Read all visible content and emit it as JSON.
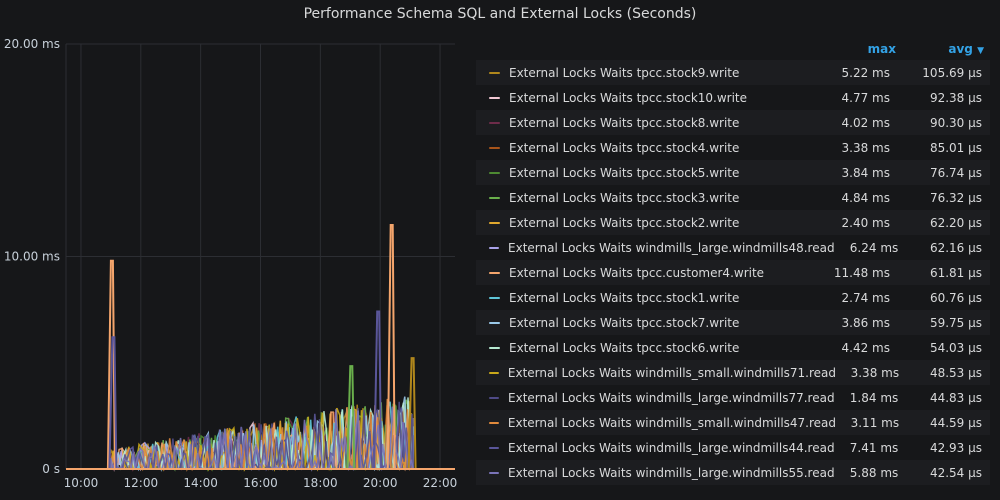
{
  "panel": {
    "title": "Performance Schema SQL and External Locks (Seconds)"
  },
  "legend": {
    "max_header": "max",
    "avg_header": "avg",
    "sort_icon": "chevron-down-icon",
    "items": [
      {
        "name": "External Locks Waits tpcc.stock9.write",
        "max": "5.22 ms",
        "avg": "105.69 µs",
        "color": "#b0871c"
      },
      {
        "name": "External Locks Waits tpcc.stock10.write",
        "max": "4.77 ms",
        "avg": "92.38 µs",
        "color": "#f2c8d3"
      },
      {
        "name": "External Locks Waits tpcc.stock8.write",
        "max": "4.02 ms",
        "avg": "90.30 µs",
        "color": "#6e2c4a"
      },
      {
        "name": "External Locks Waits tpcc.stock4.write",
        "max": "3.38 ms",
        "avg": "85.01 µs",
        "color": "#a8541a"
      },
      {
        "name": "External Locks Waits tpcc.stock5.write",
        "max": "3.84 ms",
        "avg": "76.74 µs",
        "color": "#4d8a32"
      },
      {
        "name": "External Locks Waits tpcc.stock3.write",
        "max": "4.84 ms",
        "avg": "76.32 µs",
        "color": "#6ab04c"
      },
      {
        "name": "External Locks Waits tpcc.stock2.write",
        "max": "2.40 ms",
        "avg": "62.20 µs",
        "color": "#e0a82e"
      },
      {
        "name": "External Locks Waits windmills_large.windmills48.read",
        "max": "6.24 ms",
        "avg": "62.16 µs",
        "color": "#a9a2e8"
      },
      {
        "name": "External Locks Waits tpcc.customer4.write",
        "max": "11.48 ms",
        "avg": "61.81 µs",
        "color": "#f4a56c"
      },
      {
        "name": "External Locks Waits tpcc.stock1.write",
        "max": "2.74 ms",
        "avg": "60.76 µs",
        "color": "#5fc6d8"
      },
      {
        "name": "External Locks Waits tpcc.stock7.write",
        "max": "3.86 ms",
        "avg": "59.75 µs",
        "color": "#9ac8e8"
      },
      {
        "name": "External Locks Waits tpcc.stock6.write",
        "max": "4.42 ms",
        "avg": "54.03 µs",
        "color": "#b6ead1"
      },
      {
        "name": "External Locks Waits windmills_small.windmills71.read",
        "max": "3.38 ms",
        "avg": "48.53 µs",
        "color": "#c9a81a"
      },
      {
        "name": "External Locks Waits windmills_large.windmills77.read",
        "max": "1.84 ms",
        "avg": "44.83 µs",
        "color": "#4f4a86"
      },
      {
        "name": "External Locks Waits windmills_small.windmills47.read",
        "max": "3.11 ms",
        "avg": "44.59 µs",
        "color": "#e08a3c"
      },
      {
        "name": "External Locks Waits windmills_large.windmills44.read",
        "max": "7.41 ms",
        "avg": "42.93 µs",
        "color": "#5a5699"
      },
      {
        "name": "External Locks Waits windmills_large.windmills55.read",
        "max": "5.88 ms",
        "avg": "42.54 µs",
        "color": "#7a74b8"
      }
    ]
  },
  "chart_data": {
    "type": "line",
    "x_ticks": [
      "10:00",
      "12:00",
      "14:00",
      "16:00",
      "18:00",
      "20:00",
      "22:00"
    ],
    "y_ticks": [
      "0 s",
      "10.00 ms",
      "20.00 ms"
    ],
    "ylim_ms": [
      0,
      20
    ],
    "xlim_hours": [
      9.5,
      22.5
    ],
    "grid": true,
    "legend_placement": "right",
    "series": [
      {
        "name": "External Locks Waits tpcc.customer4.write",
        "color": "#f4a56c",
        "peaks": [
          [
            11.0,
            9.8
          ],
          [
            20.35,
            11.48
          ]
        ]
      },
      {
        "name": "External Locks Waits windmills_large.windmills44.read",
        "color": "#5a5699",
        "peaks": [
          [
            11.05,
            6.2
          ],
          [
            19.9,
            7.41
          ]
        ]
      },
      {
        "name": "External Locks Waits tpcc.stock9.write",
        "color": "#b0871c",
        "peaks": [
          [
            21.05,
            5.22
          ]
        ]
      },
      {
        "name": "External Locks Waits tpcc.stock3.write",
        "color": "#6ab04c",
        "peaks": [
          [
            19.0,
            4.84
          ]
        ]
      }
    ],
    "activity_window_hours": [
      11.0,
      21.1
    ]
  }
}
